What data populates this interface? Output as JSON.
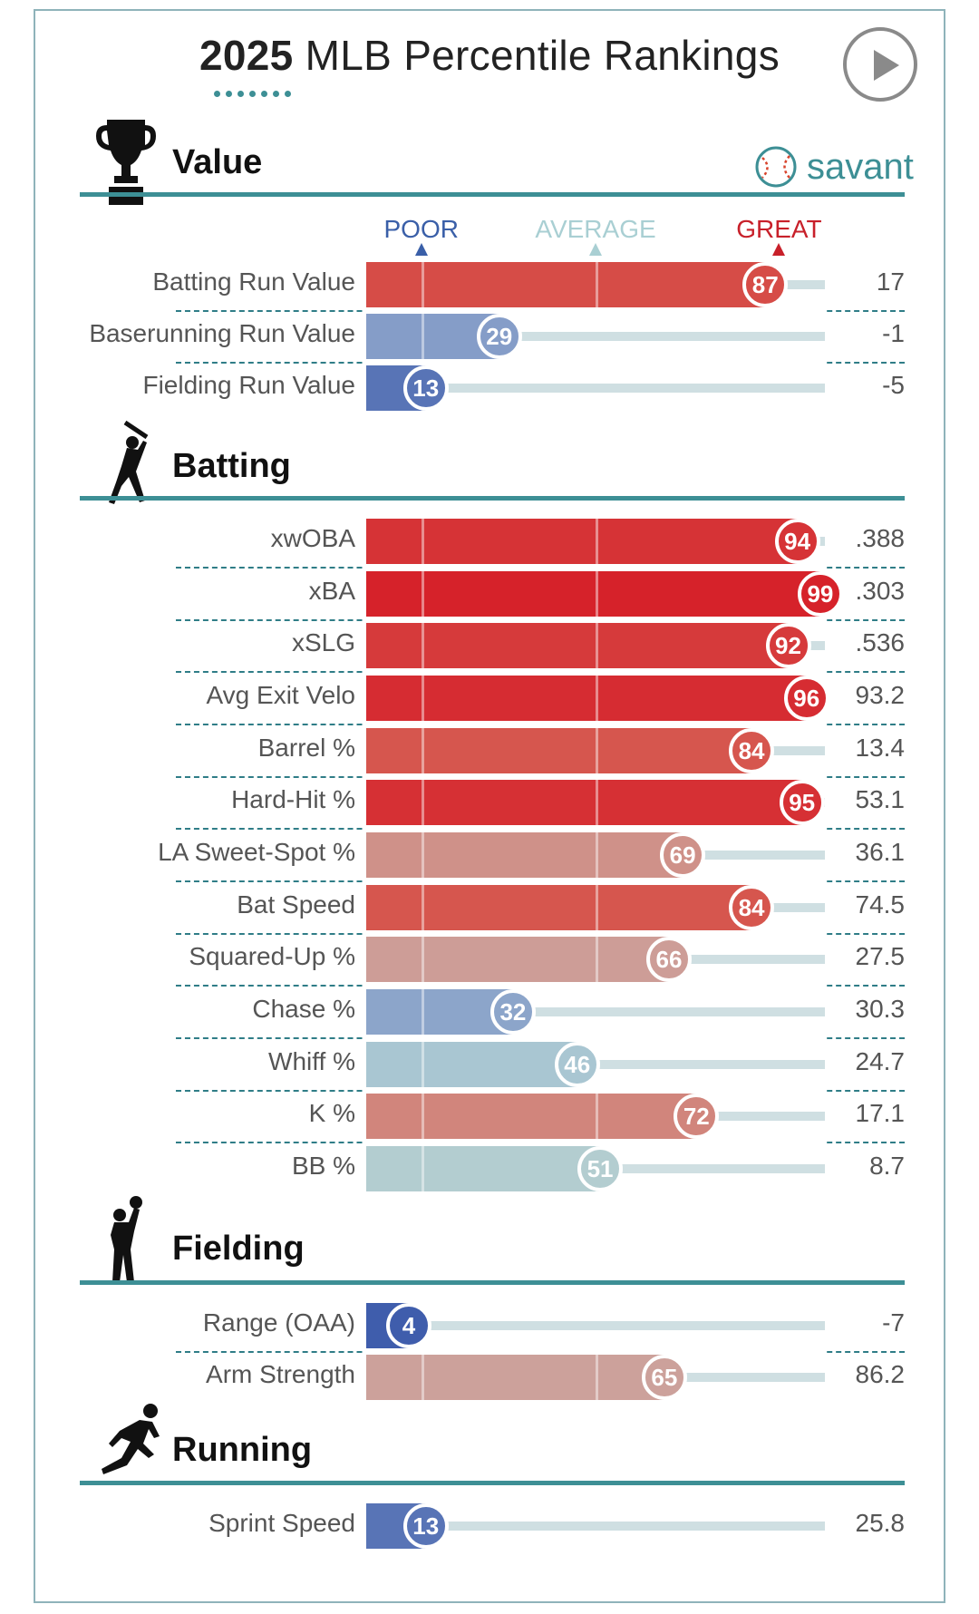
{
  "header": {
    "year": "2025",
    "title_rest": "MLB Percentile Rankings",
    "play_button_icon": "play-icon",
    "brand": "savant"
  },
  "scale": {
    "poor": "POOR",
    "average": "AVERAGE",
    "great": "GREAT"
  },
  "colors": {
    "accent": "#3d8f95",
    "poor_label": "#3a5fa8",
    "average_label": "#a9cfd3",
    "great_label": "#c8202a",
    "track": "#cfdfe2"
  },
  "chart_data": {
    "type": "bar",
    "x_range": [
      0,
      100
    ],
    "x_markers": [
      "POOR",
      "AVERAGE",
      "GREAT"
    ],
    "sections": [
      {
        "name": "Value",
        "icon": "trophy-icon",
        "rows": [
          {
            "label": "Batting Run Value",
            "percentile": 87,
            "value": "17"
          },
          {
            "label": "Baserunning Run Value",
            "percentile": 29,
            "value": "-1"
          },
          {
            "label": "Fielding Run Value",
            "percentile": 13,
            "value": "-5"
          }
        ]
      },
      {
        "name": "Batting",
        "icon": "batter-icon",
        "rows": [
          {
            "label": "xwOBA",
            "percentile": 94,
            "value": ".388"
          },
          {
            "label": "xBA",
            "percentile": 99,
            "value": ".303"
          },
          {
            "label": "xSLG",
            "percentile": 92,
            "value": ".536"
          },
          {
            "label": "Avg Exit Velo",
            "percentile": 96,
            "value": "93.2"
          },
          {
            "label": "Barrel %",
            "percentile": 84,
            "value": "13.4"
          },
          {
            "label": "Hard-Hit %",
            "percentile": 95,
            "value": "53.1"
          },
          {
            "label": "LA Sweet-Spot %",
            "percentile": 69,
            "value": "36.1"
          },
          {
            "label": "Bat Speed",
            "percentile": 84,
            "value": "74.5"
          },
          {
            "label": "Squared-Up %",
            "percentile": 66,
            "value": "27.5"
          },
          {
            "label": "Chase %",
            "percentile": 32,
            "value": "30.3"
          },
          {
            "label": "Whiff %",
            "percentile": 46,
            "value": "24.7"
          },
          {
            "label": "K %",
            "percentile": 72,
            "value": "17.1"
          },
          {
            "label": "BB %",
            "percentile": 51,
            "value": "8.7"
          }
        ]
      },
      {
        "name": "Fielding",
        "icon": "fielder-icon",
        "rows": [
          {
            "label": "Range (OAA)",
            "percentile": 4,
            "value": "-7"
          },
          {
            "label": "Arm Strength",
            "percentile": 65,
            "value": "86.2"
          }
        ]
      },
      {
        "name": "Running",
        "icon": "runner-icon",
        "rows": [
          {
            "label": "Sprint Speed",
            "percentile": 13,
            "value": "25.8"
          }
        ]
      }
    ]
  }
}
